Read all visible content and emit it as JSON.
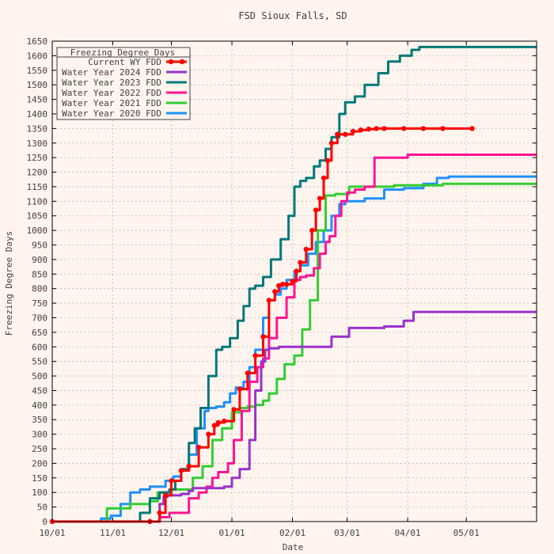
{
  "colors": {
    "background": "#fff5ee",
    "grid": "#b8b8b8",
    "axis": "#000000",
    "text": "#404040",
    "current": "#ff0000",
    "wy2024": "#9932cc",
    "wy2023": "#007878",
    "wy2022": "#ff1493",
    "wy2021": "#32cd32",
    "wy2020": "#1e90ff"
  },
  "chart_data": {
    "type": "line",
    "title": "FSD Sioux Falls, SD",
    "xlabel": "Date",
    "ylabel": "Freezing Degree Days",
    "x_tick_labels": [
      "10/01",
      "11/01",
      "12/01",
      "01/01",
      "02/01",
      "03/01",
      "04/01",
      "05/01"
    ],
    "x_tick_days": [
      0,
      31,
      61,
      92,
      123,
      151,
      182,
      212
    ],
    "xlim": [
      0,
      248
    ],
    "ylim": [
      0,
      1650
    ],
    "y_step": 50,
    "grid": true,
    "legend_title": "Freezing Degree Days",
    "legend_position": "top-left",
    "series": [
      {
        "name": "Current WY FDD",
        "color_key": "current",
        "markers": true,
        "x": [
          0,
          50,
          55,
          58,
          61,
          66,
          70,
          75,
          80,
          83,
          85,
          88,
          93,
          96,
          100,
          104,
          108,
          111,
          114,
          116,
          118,
          120,
          123,
          125,
          127,
          130,
          133,
          135,
          137,
          139,
          141,
          143,
          146,
          150,
          154,
          158,
          162,
          166,
          170,
          180,
          190,
          200,
          215
        ],
        "y": [
          0,
          0,
          30,
          90,
          140,
          175,
          190,
          255,
          300,
          330,
          340,
          345,
          385,
          455,
          510,
          570,
          635,
          760,
          790,
          810,
          815,
          815,
          825,
          860,
          890,
          935,
          1000,
          1070,
          1110,
          1180,
          1240,
          1300,
          1330,
          1330,
          1340,
          1345,
          1348,
          1350,
          1350,
          1350,
          1350,
          1350,
          1350
        ]
      },
      {
        "name": "Water Year 2024 FDD",
        "color_key": "wy2024",
        "markers": false,
        "x": [
          0,
          45,
          55,
          57,
          59,
          61,
          66,
          70,
          72,
          77,
          88,
          92,
          96,
          101,
          104,
          107,
          109,
          111,
          113,
          116,
          120,
          124,
          140,
          143,
          152,
          170,
          180,
          185,
          200,
          248
        ],
        "y": [
          0,
          0,
          60,
          85,
          90,
          90,
          95,
          105,
          115,
          115,
          120,
          150,
          180,
          280,
          450,
          550,
          590,
          595,
          595,
          600,
          600,
          600,
          600,
          635,
          665,
          670,
          690,
          720,
          720,
          720
        ]
      },
      {
        "name": "Water Year 2023 FDD",
        "color_key": "wy2023",
        "markers": false,
        "x": [
          0,
          40,
          45,
          50,
          55,
          60,
          63,
          66,
          70,
          73,
          76,
          80,
          84,
          87,
          88,
          91,
          95,
          98,
          101,
          104,
          108,
          112,
          117,
          121,
          124,
          127,
          130,
          134,
          137,
          140,
          143,
          147,
          150,
          155,
          160,
          167,
          172,
          178,
          184,
          188,
          195,
          248
        ],
        "y": [
          0,
          0,
          30,
          80,
          100,
          110,
          140,
          180,
          270,
          320,
          390,
          500,
          590,
          600,
          600,
          630,
          690,
          740,
          800,
          810,
          840,
          900,
          970,
          1050,
          1150,
          1170,
          1180,
          1220,
          1240,
          1280,
          1320,
          1400,
          1440,
          1460,
          1500,
          1540,
          1580,
          1600,
          1620,
          1630,
          1630,
          1630
        ]
      },
      {
        "name": "Water Year 2022 FDD",
        "color_key": "wy2022",
        "markers": false,
        "x": [
          0,
          50,
          55,
          60,
          64,
          70,
          75,
          79,
          82,
          85,
          90,
          93,
          97,
          101,
          105,
          108,
          111,
          115,
          120,
          124,
          127,
          130,
          134,
          137,
          140,
          142,
          145,
          148,
          151,
          155,
          160,
          165,
          178,
          182,
          200,
          248
        ],
        "y": [
          0,
          0,
          15,
          30,
          30,
          80,
          100,
          120,
          150,
          170,
          200,
          280,
          380,
          480,
          530,
          560,
          630,
          700,
          770,
          830,
          840,
          845,
          870,
          920,
          960,
          980,
          1050,
          1100,
          1130,
          1140,
          1150,
          1250,
          1250,
          1260,
          1260,
          1260
        ]
      },
      {
        "name": "Water Year 2021 FDD",
        "color_key": "wy2021",
        "markers": false,
        "x": [
          0,
          25,
          28,
          38,
          40,
          50,
          54,
          60,
          68,
          72,
          77,
          82,
          87,
          92,
          96,
          100,
          104,
          108,
          111,
          115,
          119,
          124,
          128,
          132,
          136,
          140,
          145,
          152,
          160,
          175,
          200,
          248
        ],
        "y": [
          0,
          0,
          45,
          45,
          60,
          70,
          100,
          110,
          110,
          150,
          190,
          280,
          320,
          375,
          390,
          395,
          400,
          415,
          440,
          490,
          540,
          570,
          660,
          760,
          1000,
          1120,
          1125,
          1150,
          1150,
          1155,
          1160,
          1160
        ]
      },
      {
        "name": "Water Year 2020 FDD",
        "color_key": "wy2020",
        "markers": false,
        "x": [
          0,
          20,
          25,
          30,
          35,
          40,
          45,
          50,
          58,
          62,
          66,
          70,
          74,
          78,
          80,
          84,
          88,
          91,
          94,
          98,
          101,
          104,
          108,
          111,
          114,
          117,
          120,
          124,
          127,
          131,
          135,
          139,
          143,
          147,
          150,
          160,
          170,
          180,
          190,
          197,
          203,
          248
        ],
        "y": [
          0,
          0,
          10,
          20,
          60,
          100,
          110,
          120,
          140,
          155,
          175,
          230,
          320,
          380,
          390,
          395,
          410,
          440,
          460,
          480,
          530,
          590,
          700,
          760,
          780,
          800,
          830,
          860,
          880,
          920,
          960,
          1000,
          1050,
          1090,
          1100,
          1110,
          1140,
          1145,
          1160,
          1180,
          1185,
          1185
        ]
      }
    ]
  }
}
